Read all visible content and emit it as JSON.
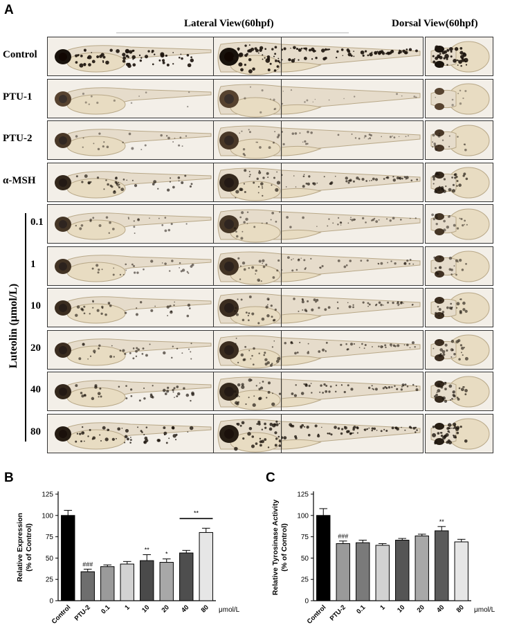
{
  "figure": {
    "panel_a": {
      "letter": "A",
      "lateral_title": "Lateral View(60hpf)",
      "dorsal_title": "Dorsal View(60hpf)",
      "rows": [
        {
          "label": "Control",
          "pigment": 0.95
        },
        {
          "label": "PTU-1",
          "pigment": 0.05
        },
        {
          "label": "PTU-2",
          "pigment": 0.25
        },
        {
          "label": "α-MSH",
          "pigment": 0.55
        },
        {
          "label": "0.1",
          "pigment": 0.3
        },
        {
          "label": "1",
          "pigment": 0.35
        },
        {
          "label": "10",
          "pigment": 0.45
        },
        {
          "label": "20",
          "pigment": 0.45
        },
        {
          "label": "40",
          "pigment": 0.55
        },
        {
          "label": "80",
          "pigment": 0.75
        }
      ],
      "group_label": "Luteolin (μmol/L)"
    },
    "panel_b": {
      "letter": "B",
      "chart_data": {
        "type": "bar",
        "categories": [
          "Control",
          "PTU-2",
          "0.1",
          "1",
          "10",
          "20",
          "40",
          "80"
        ],
        "values": [
          100,
          34,
          40,
          43,
          47,
          45,
          56,
          80
        ],
        "errors": [
          6,
          3,
          2,
          3,
          7,
          4,
          3,
          5
        ],
        "bar_colors": [
          "#000000",
          "#6e6e6e",
          "#9a9a9a",
          "#d2d2d2",
          "#4a4a4a",
          "#a8a8a8",
          "#4e4e4e",
          "#e6e6e6"
        ],
        "annotations": [
          "",
          "###",
          "",
          "",
          "**",
          "*",
          "",
          ""
        ],
        "bracket": {
          "from": "40",
          "to": "80",
          "label": "**"
        },
        "ylabel_line1": "Relative Expression",
        "ylabel_line2": "(% of Control)",
        "unit_label": "μmol/L",
        "ylim": [
          0,
          125
        ],
        "yticks": [
          0,
          25,
          50,
          75,
          100,
          125
        ]
      }
    },
    "panel_c": {
      "letter": "C",
      "chart_data": {
        "type": "bar",
        "categories": [
          "Control",
          "PTU-2",
          "0.1",
          "1",
          "10",
          "20",
          "40",
          "80"
        ],
        "values": [
          100,
          67,
          68,
          65,
          71,
          76,
          82,
          69
        ],
        "errors": [
          8,
          3,
          3,
          2,
          2,
          2,
          5,
          3
        ],
        "bar_colors": [
          "#000000",
          "#9a9a9a",
          "#7a7a7a",
          "#d2d2d2",
          "#555555",
          "#a8a8a8",
          "#5a5a5a",
          "#e6e6e6"
        ],
        "annotations": [
          "",
          "###",
          "",
          "",
          "",
          "",
          "**",
          ""
        ],
        "ylabel_line1": "Relative Tyrosinase Activity",
        "ylabel_line2": "(% of Control)",
        "unit_label": "μmol/L",
        "ylim": [
          0,
          125
        ],
        "yticks": [
          0,
          25,
          50,
          75,
          100,
          125
        ]
      }
    }
  }
}
